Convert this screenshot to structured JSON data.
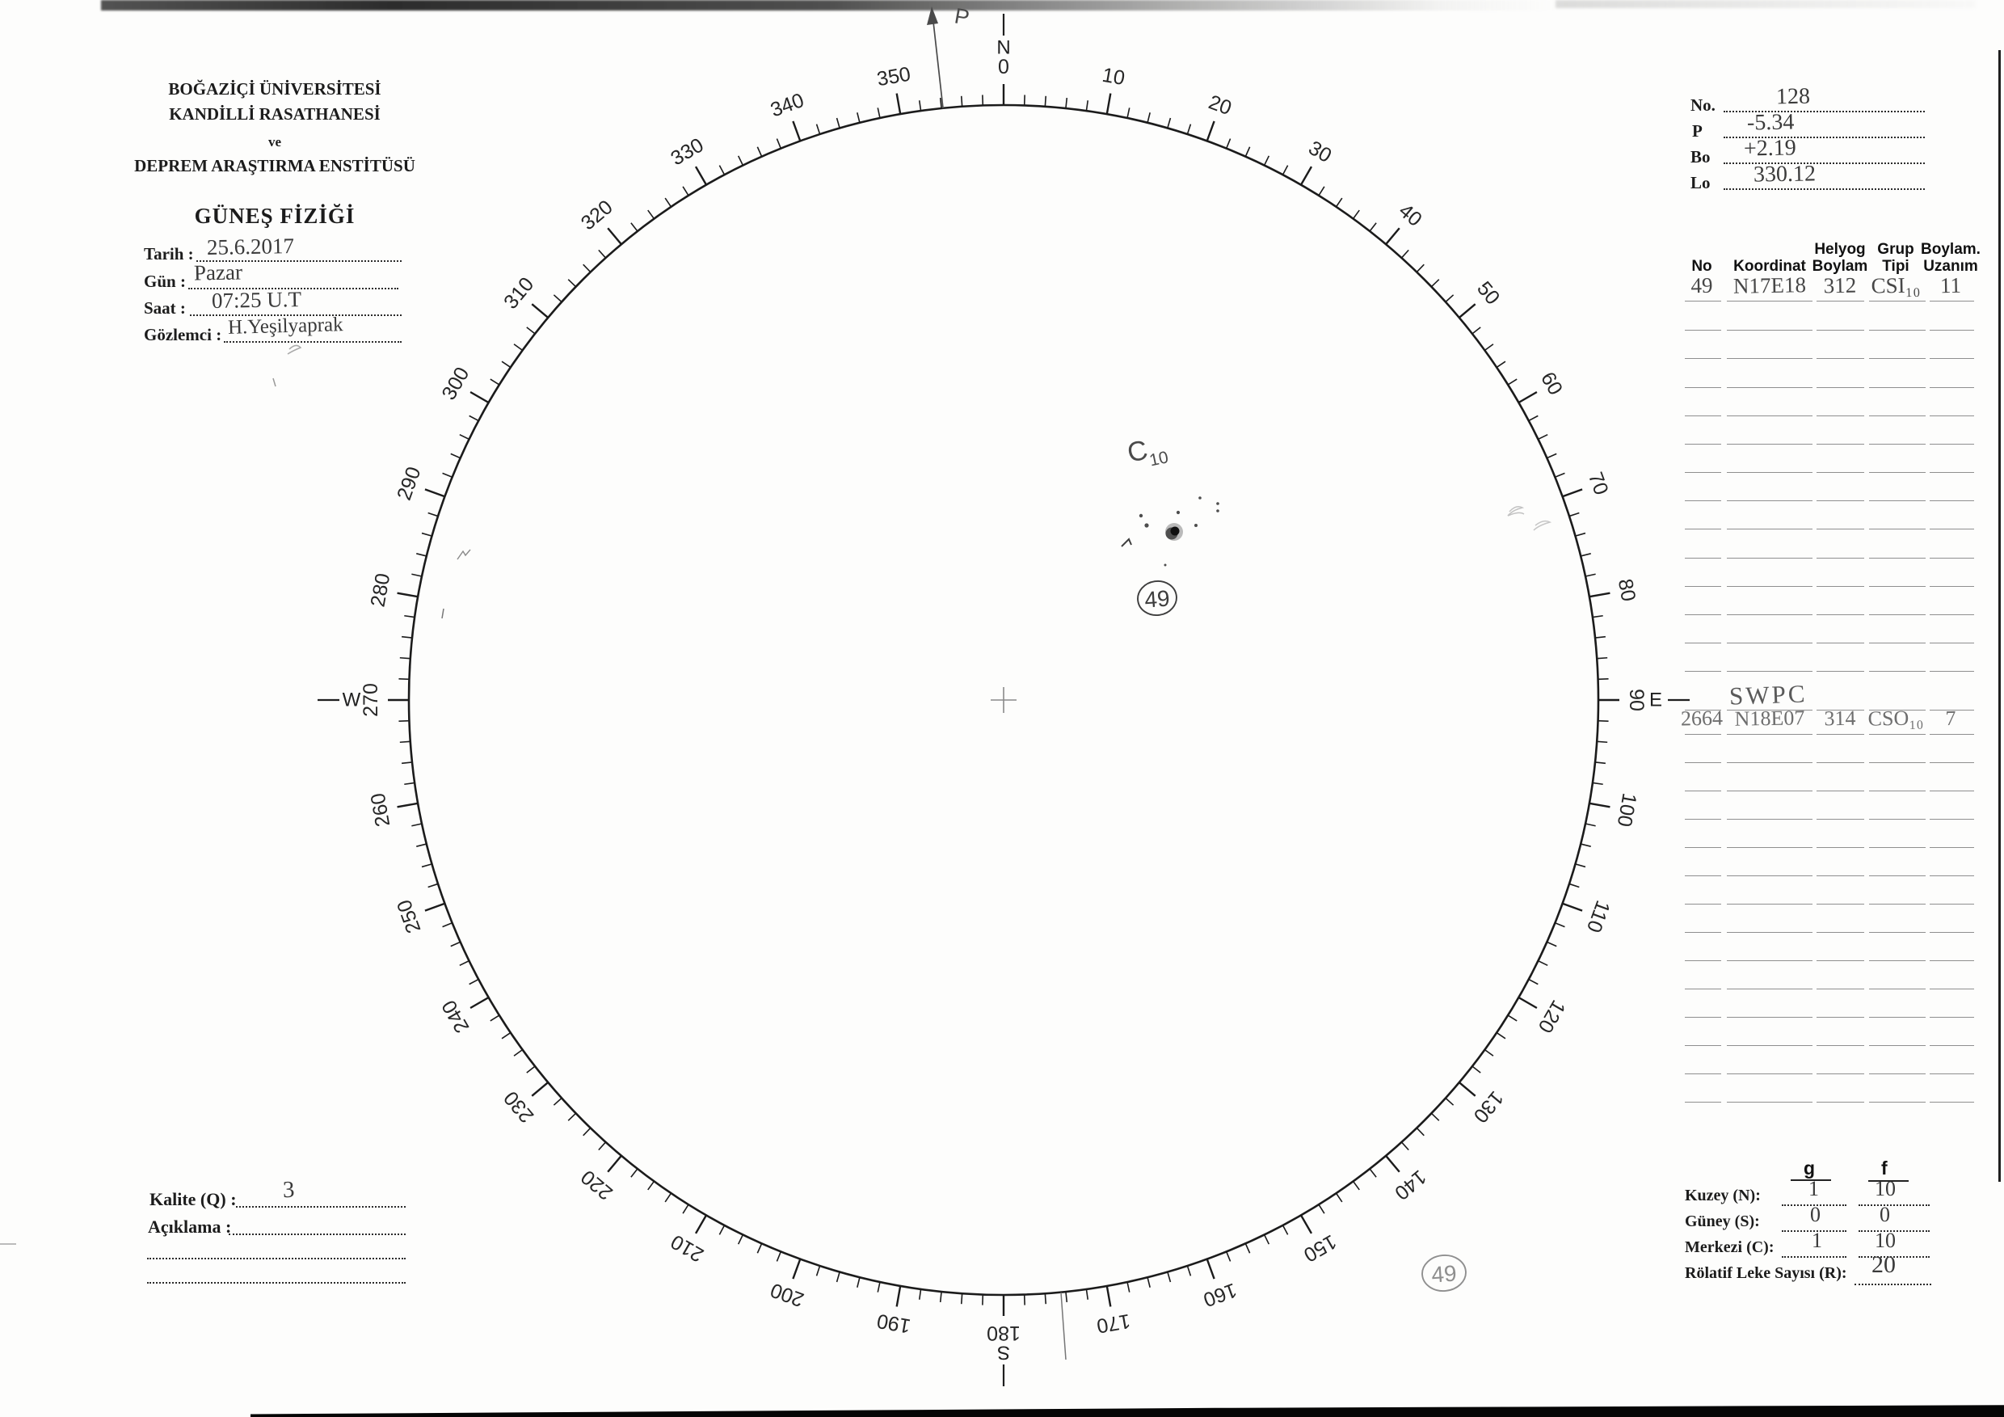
{
  "institution": {
    "line1": "BOĞAZİÇİ ÜNİVERSİTESİ",
    "line2": "KANDİLLİ RASATHANESİ",
    "line3": "ve",
    "line4": "DEPREM ARAŞTIRMA ENSTİTÜSÜ",
    "form_title": "GÜNEŞ FİZİĞİ"
  },
  "observation_fields": {
    "tarih": {
      "label": "Tarih :",
      "value": "25.6.2017"
    },
    "gun": {
      "label": "Gün :",
      "value": "Pazar"
    },
    "saat": {
      "label": "Saat :",
      "value": "07:25 U.T"
    },
    "gozlemci": {
      "label": "Gözlemci :",
      "value": "H.Yeşilyaprak"
    }
  },
  "ephemeris": {
    "no": {
      "label": "No.",
      "value": "128"
    },
    "p": {
      "label": "P",
      "value": "-5.34"
    },
    "bo": {
      "label": "Bo",
      "value": "+2.19"
    },
    "lo": {
      "label": "Lo",
      "value": "330.12"
    }
  },
  "group_table": {
    "headers": [
      "No",
      "Koordinat",
      "Helyog\nBoylam",
      "Grup\nTipi",
      "Boylam.\nUzanım"
    ],
    "first_row": {
      "no": "49",
      "koordinat": "N17E18",
      "helyog_boylam": "312",
      "grup_tipi": "CSI₁₀",
      "boylam_uzanim": "11"
    },
    "swpc_label": "SWPC",
    "swpc_row": {
      "no": "2664",
      "koordinat": "N18E07",
      "helyog_boylam": "314",
      "grup_tipi": "CSO₁₀",
      "boylam_uzanim": "7"
    }
  },
  "disk": {
    "cardinals": {
      "n": "N",
      "s": "S",
      "e": "E",
      "w": "W"
    },
    "degree_labels": [
      "0",
      "10",
      "20",
      "30",
      "40",
      "50",
      "60",
      "70",
      "80",
      "90",
      "100",
      "110",
      "120",
      "130",
      "140",
      "150",
      "160",
      "170",
      "180",
      "190",
      "200",
      "210",
      "220",
      "230",
      "240",
      "250",
      "260",
      "270",
      "280",
      "290",
      "300",
      "310",
      "320",
      "330",
      "340",
      "350"
    ],
    "p_arrow_label": "P",
    "group_annotation": {
      "class_main": "C",
      "class_sub": "10"
    },
    "group_number_circled": "49",
    "secondary_circled_number": "49",
    "sunspot_group": {
      "main_spot": [
        1453,
        658
      ],
      "satellite_dots": [
        [
          1412,
          638,
          2.2
        ],
        [
          1419,
          650,
          2.6
        ],
        [
          1458,
          634,
          2.1
        ],
        [
          1480,
          650,
          2.0
        ],
        [
          1485,
          616,
          1.8
        ],
        [
          1507,
          623,
          1.8
        ],
        [
          1507,
          632,
          1.8
        ],
        [
          1442,
          699,
          1.5
        ]
      ]
    }
  },
  "quality": {
    "kalite": {
      "label": "Kalite (Q) :",
      "value": "3"
    },
    "aciklama": {
      "label": "Açıklama :",
      "value": ""
    }
  },
  "spot_counts": {
    "col_g": "g",
    "col_f": "f",
    "kuzey": {
      "label": "Kuzey (N):",
      "g": "1",
      "f": "10"
    },
    "guney": {
      "label": "Güney (S):",
      "g": "0",
      "f": "0"
    },
    "merkezi": {
      "label": "Merkezi (C):",
      "g": "1",
      "f": "10"
    },
    "rolatif": {
      "label": "Rölatif Leke Sayısı (R):",
      "value": "20"
    }
  }
}
